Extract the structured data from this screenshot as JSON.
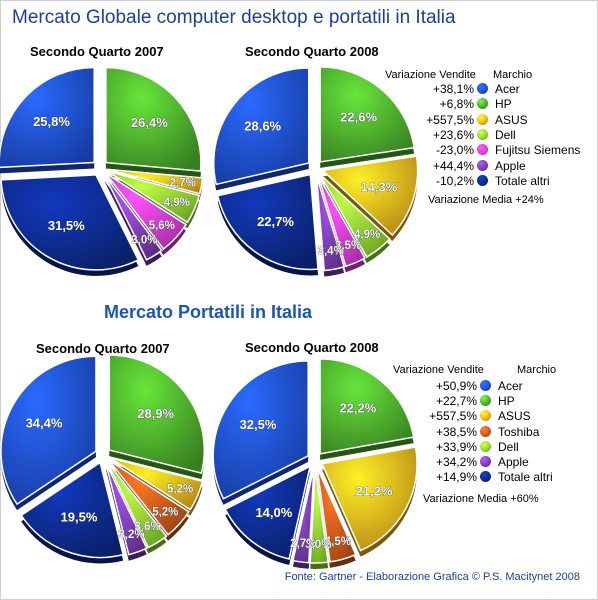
{
  "title": "Mercato Globale computer desktop e portatili in Italia",
  "section_title": "Mercato Portatili in Italia",
  "source": "Fonte: Gartner - Elaborazione Grafica © P.S. Macitynet 2008",
  "colors": {
    "Acer": "#1f4fd6",
    "HP": "#4caa2c",
    "ASUS": "#f3b21c",
    "Dell": "#8fdc32",
    "Fujitsu Siemens": "#e23ddd",
    "Apple": "#7a3db0",
    "Totale altri": "#0d2a8c",
    "Toshiba": "#d4581b"
  },
  "chart_data": [
    {
      "type": "pie",
      "title": "Secondo Quarto 2007",
      "labels": [
        "HP",
        "ASUS",
        "Dell",
        "Fujitsu Siemens",
        "Apple",
        "Totale altri",
        "Acer"
      ],
      "values": [
        26.4,
        2.7,
        4.9,
        5.6,
        3.0,
        31.5,
        25.8
      ],
      "value_labels": [
        "26,4%",
        "2,7%",
        "4,9%",
        "5,6%",
        "3,0%",
        "31,5%",
        "25,8%"
      ]
    },
    {
      "type": "pie",
      "title": "Secondo Quarto 2008",
      "labels": [
        "HP",
        "ASUS",
        "Dell",
        "Fujitsu Siemens",
        "Apple",
        "Totale altri",
        "Acer"
      ],
      "values": [
        22.6,
        14.3,
        4.9,
        3.5,
        3.4,
        22.7,
        28.6
      ],
      "value_labels": [
        "22,6%",
        "14,3%",
        "4,9%",
        "3,5%",
        "3,4%",
        "22,7%",
        "28,6%"
      ]
    },
    {
      "type": "pie",
      "title": "Secondo Quarto 2007",
      "labels": [
        "HP",
        "ASUS",
        "Toshiba",
        "Dell",
        "Apple",
        "Totale altri",
        "Acer"
      ],
      "values": [
        28.9,
        5.2,
        5.2,
        3.6,
        3.2,
        19.5,
        34.4
      ],
      "value_labels": [
        "28,9%",
        "5,2%",
        "5,2%",
        "3,6%",
        "3,2%",
        "19,5%",
        "34,4%"
      ]
    },
    {
      "type": "pie",
      "title": "Secondo Quarto 2008",
      "labels": [
        "HP",
        "ASUS",
        "Toshiba",
        "Dell",
        "Apple",
        "Totale altri",
        "Acer"
      ],
      "values": [
        22.2,
        21.2,
        4.5,
        3.0,
        2.7,
        14.0,
        32.5
      ],
      "value_labels": [
        "22,2%",
        "21,2%",
        "4,5%",
        "3,0%",
        "2,7%",
        "14,0%",
        "32,5%"
      ]
    }
  ],
  "legends": [
    {
      "header_change": "Variazione Vendite",
      "header_brand": "Marchio",
      "items": [
        {
          "change": "+38,1%",
          "brand": "Acer",
          "color": "#1f4fd6"
        },
        {
          "change": "+6,8%",
          "brand": "HP",
          "color": "#4caa2c"
        },
        {
          "change": "+557,5%",
          "brand": "ASUS",
          "color": "#f3b21c"
        },
        {
          "change": "+23,6%",
          "brand": "Dell",
          "color": "#8fdc32"
        },
        {
          "change": "-23,0%",
          "brand": "Fujitsu Siemens",
          "color": "#e23ddd"
        },
        {
          "change": "+44,4%",
          "brand": "Apple",
          "color": "#7a3db0"
        },
        {
          "change": "-10,2%",
          "brand": "Totale altri",
          "color": "#0d2a8c"
        }
      ],
      "average": "Variazione Media +24%"
    },
    {
      "header_change": "Variazione Vendite",
      "header_brand": "Marchio",
      "items": [
        {
          "change": "+50,9%",
          "brand": "Acer",
          "color": "#1f4fd6"
        },
        {
          "change": "+22,7%",
          "brand": "HP",
          "color": "#4caa2c"
        },
        {
          "change": "+557,5%",
          "brand": "ASUS",
          "color": "#f3b21c"
        },
        {
          "change": "+38,5%",
          "brand": "Toshiba",
          "color": "#d4581b"
        },
        {
          "change": "+33,9%",
          "brand": "Dell",
          "color": "#8fdc32"
        },
        {
          "change": "+34,2%",
          "brand": "Apple",
          "color": "#7a3db0"
        },
        {
          "change": "+14,9%",
          "brand": "Totale altri",
          "color": "#0d2a8c"
        }
      ],
      "average": "Variazione Media +60%"
    }
  ]
}
